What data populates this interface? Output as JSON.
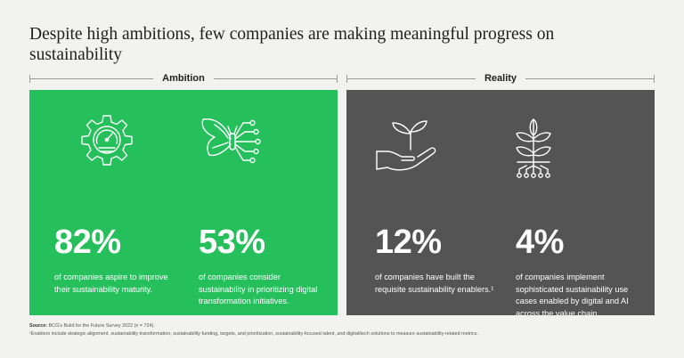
{
  "title": "Despite high ambitions, few companies are making meaningful progress on sustainability",
  "sections": {
    "ambition": {
      "label": "Ambition",
      "color": "#25c05c"
    },
    "reality": {
      "label": "Reality",
      "color": "#545454"
    }
  },
  "stats": [
    {
      "value": "82%",
      "description": "of companies aspire to improve their sustainability maturity.",
      "icon": "gauge-gear-icon"
    },
    {
      "value": "53%",
      "description": "of companies consider sustainability in prioritizing digital transformation initiatives.",
      "icon": "circuit-butterfly-icon"
    },
    {
      "value": "12%",
      "description": "of companies have built the requisite sustainability enablers.¹",
      "icon": "hand-sprout-icon"
    },
    {
      "value": "4%",
      "description": "of companies implement sophisticated sustainability use cases enabled by digital and AI across the value chain.",
      "icon": "plant-circuit-roots-icon"
    }
  ],
  "footnote": {
    "source_label": "Source:",
    "source_text": "BCG's Build for the Future Survey 2022 (n = 724).",
    "note": "¹Enablers include strategic alignment, sustainability transformation, sustainability funding, targets, and prioritization, sustainability-focused talent, and digital/tech solutions to measure sustainability-related metrics."
  }
}
